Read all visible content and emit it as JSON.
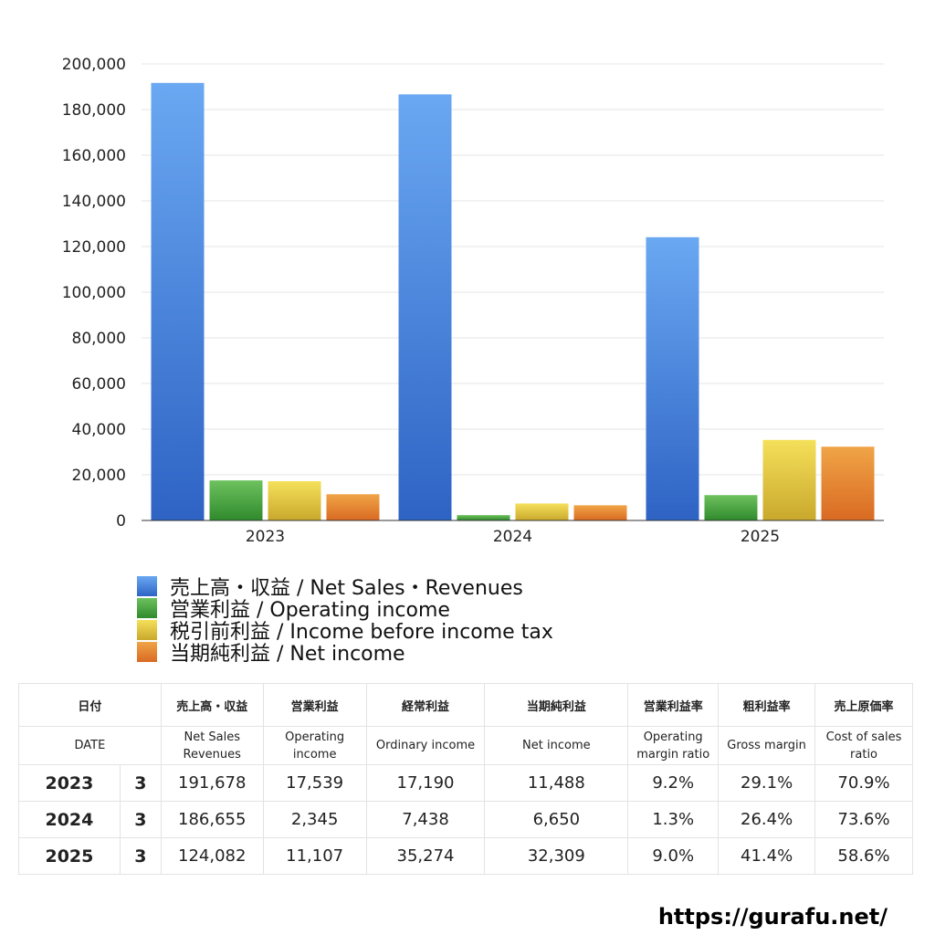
{
  "chart_data": {
    "type": "bar",
    "categories": [
      "2023",
      "2024",
      "2025"
    ],
    "ylim": [
      0,
      200000
    ],
    "yticks": [
      0,
      20000,
      40000,
      60000,
      80000,
      100000,
      120000,
      140000,
      160000,
      180000,
      200000
    ],
    "ytick_labels": [
      "0",
      "20,000",
      "40,000",
      "60,000",
      "80,000",
      "100,000",
      "120,000",
      "140,000",
      "160,000",
      "180,000",
      "200,000"
    ],
    "series": [
      {
        "name": "売上高・収益 / Net Sales・Revenues",
        "values": [
          191678,
          186655,
          124082
        ],
        "color_top": "#6aa8f2",
        "color_bottom": "#2e63c4"
      },
      {
        "name": "営業利益 / Operating income",
        "values": [
          17539,
          2345,
          11107
        ],
        "color_top": "#6ec25e",
        "color_bottom": "#2f8a2c"
      },
      {
        "name": "税引前利益 / Income before income tax",
        "values": [
          17190,
          7438,
          35274
        ],
        "color_top": "#f5e05a",
        "color_bottom": "#c9a82c"
      },
      {
        "name": "当期純利益 / Net income",
        "values": [
          11488,
          6650,
          32309
        ],
        "color_top": "#f0a447",
        "color_bottom": "#d96a22"
      }
    ],
    "grid": true,
    "legend": "bottom-left"
  },
  "table": {
    "header_jp": [
      "日付",
      "売上高・収益",
      "営業利益",
      "経常利益",
      "当期純利益",
      "営業利益率",
      "粗利益率",
      "売上原価率"
    ],
    "header_en": [
      {
        "l1": "DATE",
        "l2": ""
      },
      {
        "l1": "Net Sales",
        "l2": "Revenues"
      },
      {
        "l1": "Operating",
        "l2": "income"
      },
      {
        "l1": "Ordinary income",
        "l2": ""
      },
      {
        "l1": "Net income",
        "l2": ""
      },
      {
        "l1": "Operating",
        "l2": "margin ratio"
      },
      {
        "l1": "Gross margin",
        "l2": ""
      },
      {
        "l1": "Cost of sales",
        "l2": "ratio"
      }
    ],
    "rows": [
      {
        "year": "2023",
        "month": "3",
        "sales": "191,678",
        "operating": "17,539",
        "ordinary": "17,190",
        "net": "11,488",
        "op_margin": "9.2%",
        "gross_margin": "29.1%",
        "cost_ratio": "70.9%"
      },
      {
        "year": "2024",
        "month": "3",
        "sales": "186,655",
        "operating": "2,345",
        "ordinary": "7,438",
        "net": "6,650",
        "op_margin": "1.3%",
        "gross_margin": "26.4%",
        "cost_ratio": "73.6%"
      },
      {
        "year": "2025",
        "month": "3",
        "sales": "124,082",
        "operating": "11,107",
        "ordinary": "35,274",
        "net": "32,309",
        "op_margin": "9.0%",
        "gross_margin": "41.4%",
        "cost_ratio": "58.6%"
      }
    ]
  },
  "footer": {
    "site": "https://gurafu.net/"
  }
}
